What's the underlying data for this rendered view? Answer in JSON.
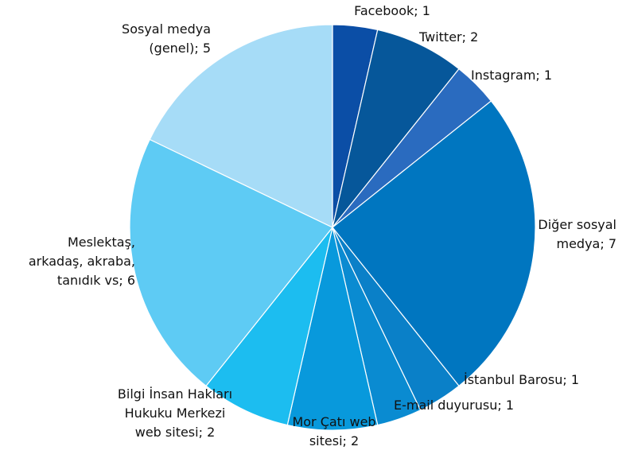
{
  "chart_data": {
    "type": "pie",
    "values": [
      1,
      2,
      1,
      7,
      1,
      1,
      2,
      2,
      6,
      5
    ],
    "value_labels": [
      [
        "Facebook; 1"
      ],
      [
        "Twitter; 2"
      ],
      [
        "Instagram; 1"
      ],
      [
        "Diğer sosyal",
        "medya; 7"
      ],
      [
        "İstanbul Barosu; 1"
      ],
      [
        "E-mail duyurusu; 1"
      ],
      [
        "Mor Çatı web",
        "sitesi; 2"
      ],
      [
        "Bilgi İnsan Hakları",
        "Hukuku Merkezi",
        "web sitesi; 2"
      ],
      [
        "Meslektaş,",
        "arkadaş, akraba,",
        "tanıdık vs; 6"
      ],
      [
        "Sosyal medya",
        "(genel); 5"
      ]
    ],
    "colors": [
      "#0b4ea6",
      "#06579a",
      "#2a6bbf",
      "#0076c0",
      "#0a80c8",
      "#0a8bd1",
      "#0899dc",
      "#1cbdf0",
      "#5ecbf4",
      "#a6dcf7"
    ]
  }
}
